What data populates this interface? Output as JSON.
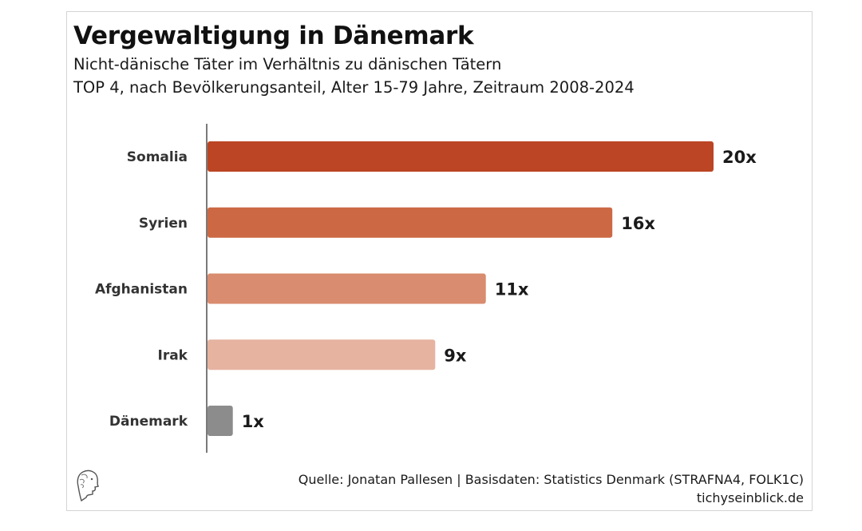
{
  "chart_data": {
    "type": "bar",
    "orientation": "horizontal",
    "title": "Vergewaltigung in Dänemark",
    "subtitle_lines": [
      "Nicht-dänische Täter im Verhältnis zu dänischen Tätern",
      "TOP 4, nach Bevölkerungsanteil, Alter 15-79 Jahre, Zeitraum 2008-2024"
    ],
    "categories": [
      "Somalia",
      "Syrien",
      "Afghanistan",
      "Irak",
      "Dänemark"
    ],
    "values": [
      20,
      16,
      11,
      9,
      1
    ],
    "value_labels": [
      "20x",
      "16x",
      "11x",
      "9x",
      "1x"
    ],
    "colors": [
      "#bb4524",
      "#cc6944",
      "#d98c6f",
      "#e6b3a1",
      "#8c8c8c"
    ],
    "xlim": [
      0,
      20
    ],
    "grid": false,
    "legend": "none"
  },
  "footer": {
    "source": "Quelle: Jonatan Pallesen | Basisdaten: Statistics Denmark (STRAFNA4, FOLK1C)",
    "site": "tichyseinblick.de",
    "logo_icon": "head-profile-icon"
  }
}
